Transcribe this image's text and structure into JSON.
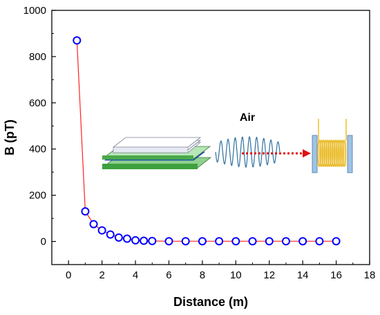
{
  "chart_data": {
    "type": "scatter",
    "xlabel": "Distance  (m)",
    "ylabel": "B  (pT)",
    "xlim": [
      -1,
      18
    ],
    "ylim": [
      -100,
      1000
    ],
    "x_ticks": [
      0,
      2,
      4,
      6,
      8,
      10,
      12,
      14,
      16,
      18
    ],
    "y_ticks": [
      0,
      200,
      400,
      600,
      800,
      1000
    ],
    "series": [
      {
        "x": [
          0.5,
          1,
          1.5,
          2,
          2.5,
          3,
          3.5,
          4,
          4.5,
          5,
          6,
          7,
          8,
          9,
          10,
          11,
          12,
          13,
          14,
          15,
          16
        ],
        "y": [
          870,
          130,
          75,
          48,
          30,
          17,
          12,
          5,
          3,
          2,
          1,
          1,
          1,
          1,
          1,
          1,
          1,
          1,
          1,
          1,
          1
        ],
        "marker_color": "#0000ff",
        "line_color": "#ff2020"
      }
    ],
    "annotations": [
      {
        "text": "Air"
      }
    ],
    "grid": false,
    "legend": "none"
  }
}
